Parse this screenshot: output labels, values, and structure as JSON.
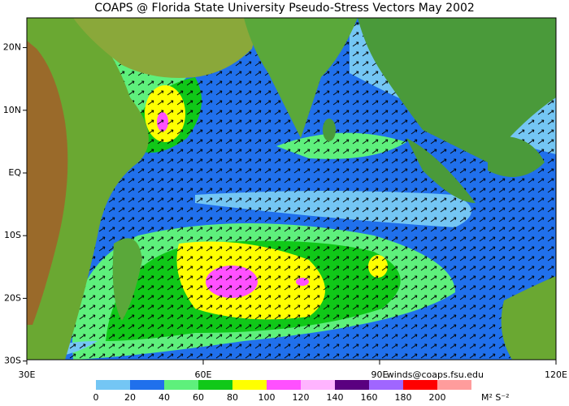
{
  "header": {
    "title": "COAPS @ Florida State University Pseudo-Stress Vectors May 2002"
  },
  "map": {
    "lat_ticks": [
      {
        "value": 20,
        "label": "20N"
      },
      {
        "value": 10,
        "label": "10N"
      },
      {
        "value": 0,
        "label": "EQ"
      },
      {
        "value": -10,
        "label": "10S"
      },
      {
        "value": -20,
        "label": "20S"
      },
      {
        "value": -30,
        "label": "30S"
      }
    ],
    "lon_ticks": [
      {
        "value": 30,
        "label": "30E"
      },
      {
        "value": 60,
        "label": "60E"
      },
      {
        "value": 90,
        "label": "90E"
      },
      {
        "value": 120,
        "label": "120E"
      }
    ]
  },
  "credit": "winds@coaps.fsu.edu",
  "colorbar": {
    "ticks": [
      0,
      20,
      40,
      60,
      80,
      100,
      120,
      140,
      160,
      180,
      200
    ],
    "colors": [
      "#74c6f4",
      "#2070ec",
      "#5ef07c",
      "#10c818",
      "#ffff00",
      "#ff50ff",
      "#ffb4ff",
      "#5a0080",
      "#a066ff",
      "#ff0000",
      "#ff9c9c"
    ],
    "unit": "M² S⁻²"
  }
}
